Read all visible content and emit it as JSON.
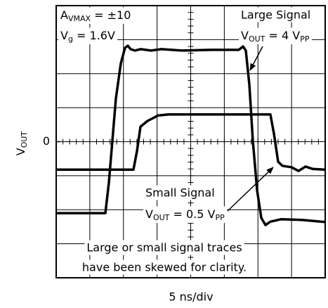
{
  "chart_data": {
    "type": "line",
    "x_label": "5 ns/div",
    "y_label": {
      "main": "V",
      "sub": "OUT"
    },
    "xlim": [
      0,
      40
    ],
    "ylim": [
      -4,
      4
    ],
    "yticks": [
      0
    ],
    "grid": true,
    "series": [
      {
        "name": "Large Signal",
        "color": "#000000",
        "x": [
          0,
          7.31,
          7.83,
          8.36,
          8.88,
          9.61,
          10.24,
          10.65,
          11.07,
          11.7,
          12.53,
          14.1,
          15.67,
          18.8,
          22.98,
          27.15,
          27.78,
          28.2,
          28.72,
          29.24,
          29.87,
          30.5,
          31.12,
          31.85,
          33.42,
          36.55,
          40
        ],
        "values": [
          -2.1,
          -2.1,
          -1.21,
          0.03,
          1.27,
          2.3,
          2.76,
          2.82,
          2.72,
          2.68,
          2.72,
          2.68,
          2.72,
          2.68,
          2.7,
          2.7,
          2.8,
          2.68,
          1.68,
          0.03,
          -1.42,
          -2.24,
          -2.45,
          -2.35,
          -2.28,
          -2.3,
          -2.36
        ]
      },
      {
        "name": "Small Signal",
        "color": "#000000",
        "x": [
          0,
          11.49,
          12.01,
          12.53,
          13.58,
          15.14,
          16.71,
          22.98,
          31.85,
          32.38,
          33.0,
          33.63,
          34.99,
          36.03,
          37.08,
          38.12,
          40
        ],
        "values": [
          -0.82,
          -0.82,
          -0.28,
          0.44,
          0.61,
          0.77,
          0.8,
          0.8,
          0.8,
          0.24,
          -0.59,
          -0.71,
          -0.75,
          -0.86,
          -0.73,
          -0.8,
          -0.82
        ]
      }
    ],
    "annotations": [
      {
        "parts": [
          "A",
          "VMAX",
          " = ±10"
        ]
      },
      {
        "parts": [
          "V",
          "g",
          " = 1.6V"
        ]
      },
      {
        "parts": [
          "V",
          "OUT",
          " = 4 V",
          "PP"
        ]
      },
      {
        "parts": [
          "V",
          "OUT",
          " = 0.5 V",
          "PP"
        ]
      }
    ],
    "note": [
      "Large or small signal traces",
      "have been skewed for clarity."
    ]
  }
}
